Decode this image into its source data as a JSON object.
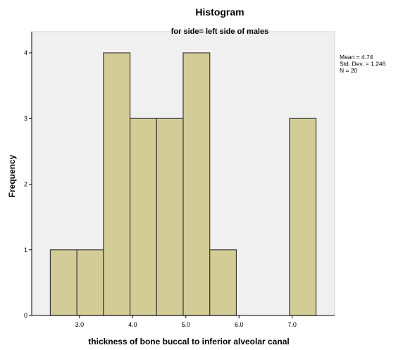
{
  "chart_data": {
    "type": "bar",
    "title": "Histogram",
    "subtitle": "for side= left side of males",
    "xlabel": "thickness of bone buccal to inferior alveolar canal",
    "ylabel": "Frequency",
    "bins": [
      {
        "start": 2.45,
        "end": 2.95,
        "count": 1
      },
      {
        "start": 2.95,
        "end": 3.45,
        "count": 1
      },
      {
        "start": 3.45,
        "end": 3.95,
        "count": 4
      },
      {
        "start": 3.95,
        "end": 4.45,
        "count": 3
      },
      {
        "start": 4.45,
        "end": 4.95,
        "count": 3
      },
      {
        "start": 4.95,
        "end": 5.45,
        "count": 4
      },
      {
        "start": 5.45,
        "end": 5.95,
        "count": 1
      },
      {
        "start": 6.95,
        "end": 7.45,
        "count": 3
      }
    ],
    "x_ticks": [
      3.0,
      4.0,
      5.0,
      6.0,
      7.0
    ],
    "x_tick_labels": [
      "3.0",
      "4.0",
      "5.0",
      "6.0",
      "7.0"
    ],
    "y_ticks": [
      0,
      1,
      2,
      3,
      4
    ],
    "y_tick_labels": [
      "0",
      "1",
      "2",
      "3",
      "4"
    ],
    "xlim": [
      2.1,
      7.8
    ],
    "ylim": [
      0,
      4.3
    ],
    "grid": false,
    "stats": [
      "Mean = 4.74",
      "Std. Dev. = 1.246",
      "N = 20"
    ],
    "colors": {
      "bar_fill": "#d3cc96",
      "bar_stroke": "#3a3a3a",
      "plot_background": "#f0f0f0",
      "axis": "#000000"
    }
  }
}
